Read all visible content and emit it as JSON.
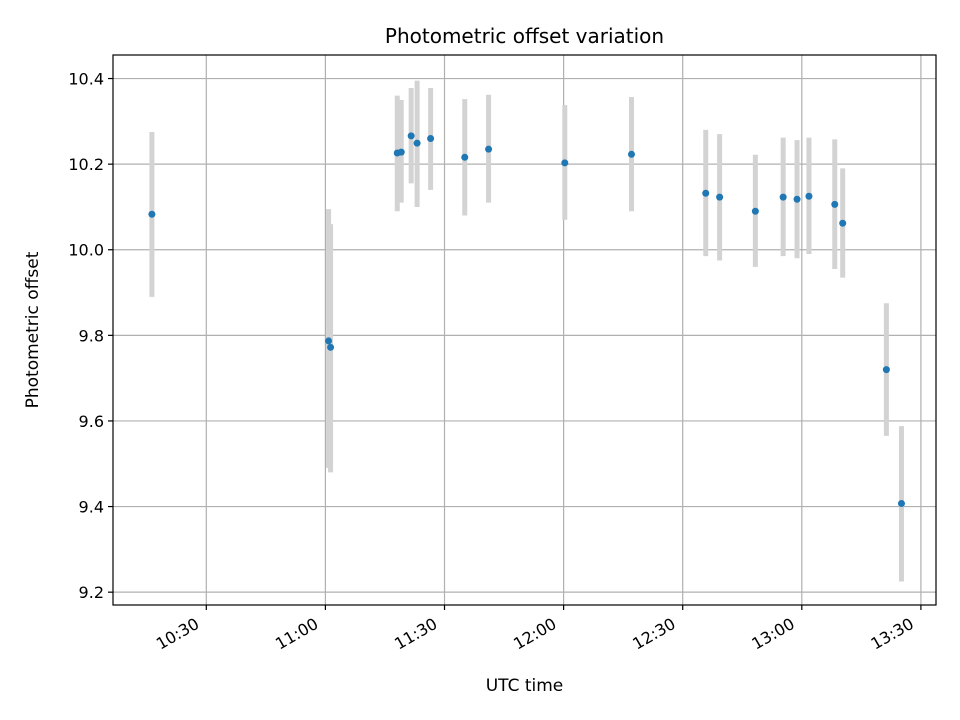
{
  "chart_data": {
    "type": "scatter",
    "title": "Photometric offset variation",
    "xlabel": "UTC time",
    "ylabel": "Photometric offset",
    "x_tick_labels": [
      "10:30",
      "11:00",
      "11:30",
      "12:00",
      "12:30",
      "13:00",
      "13:30"
    ],
    "x_ticks_min": [
      630,
      660,
      690,
      720,
      750,
      780,
      810
    ],
    "y_tick_labels": [
      "9.2",
      "9.4",
      "9.6",
      "9.8",
      "10.0",
      "10.2",
      "10.4"
    ],
    "y_ticks": [
      9.2,
      9.4,
      9.6,
      9.8,
      10.0,
      10.2,
      10.4
    ],
    "xlim_min": [
      606.5,
      813.8
    ],
    "ylim": [
      9.17,
      10.455
    ],
    "grid": true,
    "colors": {
      "point": "#1f77b4",
      "errorbar": "#d3d3d3",
      "grid": "#b0b0b0",
      "axis": "#000000"
    },
    "points": [
      {
        "t": "10:16",
        "x_min": 616.3,
        "y": 10.083,
        "ylo": 9.89,
        "yhi": 10.275
      },
      {
        "t": "11:00",
        "x_min": 660.8,
        "y": 9.787,
        "ylo": 9.49,
        "yhi": 10.095
      },
      {
        "t": "11:01",
        "x_min": 661.3,
        "y": 9.772,
        "ylo": 9.48,
        "yhi": 10.06
      },
      {
        "t": "11:18",
        "x_min": 678.1,
        "y": 10.226,
        "ylo": 10.09,
        "yhi": 10.36
      },
      {
        "t": "11:19",
        "x_min": 679.1,
        "y": 10.228,
        "ylo": 10.11,
        "yhi": 10.35
      },
      {
        "t": "11:21",
        "x_min": 681.6,
        "y": 10.266,
        "ylo": 10.155,
        "yhi": 10.378
      },
      {
        "t": "11:23",
        "x_min": 683.1,
        "y": 10.249,
        "ylo": 10.1,
        "yhi": 10.395
      },
      {
        "t": "11:27",
        "x_min": 686.5,
        "y": 10.26,
        "ylo": 10.14,
        "yhi": 10.378
      },
      {
        "t": "11:35",
        "x_min": 695.1,
        "y": 10.216,
        "ylo": 10.08,
        "yhi": 10.352
      },
      {
        "t": "11:41",
        "x_min": 701.1,
        "y": 10.235,
        "ylo": 10.11,
        "yhi": 10.362
      },
      {
        "t": "12:00",
        "x_min": 720.3,
        "y": 10.203,
        "ylo": 10.07,
        "yhi": 10.338
      },
      {
        "t": "12:17",
        "x_min": 737.1,
        "y": 10.223,
        "ylo": 10.09,
        "yhi": 10.357
      },
      {
        "t": "12:36",
        "x_min": 755.8,
        "y": 10.132,
        "ylo": 9.985,
        "yhi": 10.28
      },
      {
        "t": "12:39",
        "x_min": 759.3,
        "y": 10.123,
        "ylo": 9.975,
        "yhi": 10.27
      },
      {
        "t": "12:48",
        "x_min": 768.3,
        "y": 10.09,
        "ylo": 9.96,
        "yhi": 10.222
      },
      {
        "t": "12:55",
        "x_min": 775.3,
        "y": 10.123,
        "ylo": 9.985,
        "yhi": 10.262
      },
      {
        "t": "12:59",
        "x_min": 778.8,
        "y": 10.118,
        "ylo": 9.98,
        "yhi": 10.256
      },
      {
        "t": "13:02",
        "x_min": 781.8,
        "y": 10.125,
        "ylo": 9.99,
        "yhi": 10.262
      },
      {
        "t": "13:08",
        "x_min": 788.3,
        "y": 10.106,
        "ylo": 9.955,
        "yhi": 10.258
      },
      {
        "t": "13:10",
        "x_min": 790.3,
        "y": 10.062,
        "ylo": 9.935,
        "yhi": 10.19
      },
      {
        "t": "13:21",
        "x_min": 801.3,
        "y": 9.72,
        "ylo": 9.565,
        "yhi": 9.875
      },
      {
        "t": "13:25",
        "x_min": 805.1,
        "y": 9.407,
        "ylo": 9.225,
        "yhi": 9.588
      }
    ]
  }
}
